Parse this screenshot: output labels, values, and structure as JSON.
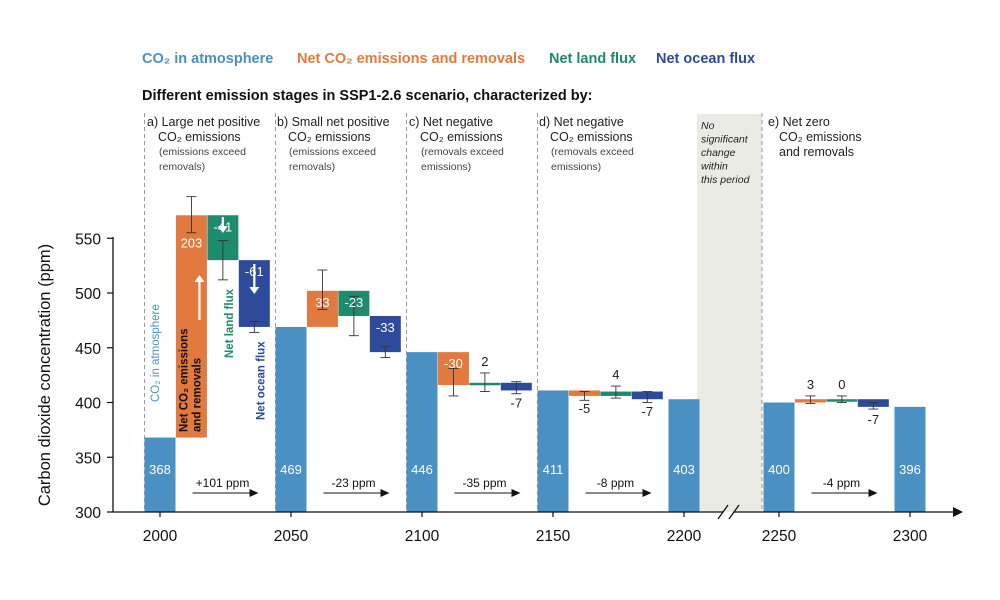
{
  "chart_data": {
    "type": "bar",
    "title": "Different emission stages in SSP1-2.6 scenario, characterized by:",
    "ylabel": "Carbon dioxide concentration (ppm)",
    "xlabel": "",
    "ylim": [
      300,
      590
    ],
    "y_ticks": [
      300,
      350,
      400,
      450,
      500,
      550
    ],
    "x_ticks": [
      "2000",
      "2050",
      "2100",
      "2150",
      "2200",
      "2250",
      "2300"
    ],
    "legend_position": "top-left",
    "legend": [
      {
        "label": "CO₂ in atmosphere",
        "color": "#4a90c2"
      },
      {
        "label": "Net CO₂ emissions and removals",
        "color": "#e27a3f"
      },
      {
        "label": "Net land flux",
        "color": "#1e8a6e"
      },
      {
        "label": "Net ocean flux",
        "color": "#2e4a9a"
      }
    ],
    "colors": {
      "atmosphere": "#4a90c2",
      "emissions": "#e27a3f",
      "land": "#1e8a6e",
      "ocean": "#2e4a9a",
      "gap": "#ebebe6"
    },
    "stages": [
      {
        "lines": [
          "a) Large net positive",
          "CO₂ emissions"
        ],
        "sub": [
          "(emissions exceed",
          "removals)"
        ],
        "x": 2000
      },
      {
        "lines": [
          "b) Small net positive",
          "CO₂ emissions"
        ],
        "sub": [
          "(emissions exceed",
          "removals)"
        ],
        "x": 2050
      },
      {
        "lines": [
          "c) Net negative",
          "CO₂ emissions"
        ],
        "sub": [
          "(removals exceed",
          "emissions)"
        ],
        "x": 2100
      },
      {
        "lines": [
          "d) Net negative",
          "CO₂ emissions"
        ],
        "sub": [
          "(removals exceed",
          "emissions)"
        ],
        "x": 2150
      },
      {
        "lines": [
          "e) Net zero",
          "CO₂ emissions",
          "and removals"
        ],
        "sub": [],
        "x": 2250
      }
    ],
    "gap_note": [
      "No",
      "significant",
      "change",
      "within",
      "this period"
    ],
    "bars": [
      {
        "kind": "atmosphere",
        "x": 2000,
        "bottom": 300,
        "top": 368,
        "label": "368"
      },
      {
        "kind": "emissions",
        "x": 2012,
        "bottom": 368,
        "top": 571,
        "label": "203",
        "err": [
          555,
          588
        ]
      },
      {
        "kind": "land",
        "x": 2024,
        "bottom": 530,
        "top": 571,
        "label": "-41",
        "err": [
          512,
          548
        ]
      },
      {
        "kind": "ocean",
        "x": 2036,
        "bottom": 469,
        "top": 530,
        "label": "-61",
        "err": [
          464,
          474
        ]
      },
      {
        "kind": "atmosphere",
        "x": 2050,
        "bottom": 300,
        "top": 469,
        "label": "469"
      },
      {
        "kind": "emissions",
        "x": 2062,
        "bottom": 469,
        "top": 502,
        "label": "33",
        "err": [
          485,
          521
        ]
      },
      {
        "kind": "land",
        "x": 2074,
        "bottom": 479,
        "top": 502,
        "label": "-23",
        "err": [
          461,
          497
        ]
      },
      {
        "kind": "ocean",
        "x": 2086,
        "bottom": 446,
        "top": 479,
        "label": "-33",
        "err": [
          441,
          451
        ]
      },
      {
        "kind": "atmosphere",
        "x": 2100,
        "bottom": 300,
        "top": 446,
        "label": "446"
      },
      {
        "kind": "emissions",
        "x": 2112,
        "bottom": 416,
        "top": 446,
        "label": "-30",
        "err": [
          406,
          431
        ]
      },
      {
        "kind": "land",
        "x": 2124,
        "bottom": 416,
        "top": 418,
        "label": "2",
        "err": [
          410,
          427
        ]
      },
      {
        "kind": "ocean",
        "x": 2136,
        "bottom": 411,
        "top": 418,
        "label": "-7",
        "err": [
          408,
          419
        ]
      },
      {
        "kind": "atmosphere",
        "x": 2150,
        "bottom": 300,
        "top": 411,
        "label": "411"
      },
      {
        "kind": "emissions",
        "x": 2162,
        "bottom": 406,
        "top": 411,
        "label": "-5",
        "err": [
          402,
          410
        ]
      },
      {
        "kind": "land",
        "x": 2174,
        "bottom": 406,
        "top": 410,
        "label": "4",
        "err": [
          404,
          415
        ]
      },
      {
        "kind": "ocean",
        "x": 2186,
        "bottom": 403,
        "top": 410,
        "label": "-7",
        "err": [
          400,
          410
        ]
      },
      {
        "kind": "atmosphere",
        "x": 2200,
        "bottom": 300,
        "top": 403,
        "label": "403"
      },
      {
        "kind": "atmosphere",
        "x": 2250,
        "bottom": 300,
        "top": 400,
        "label": "400"
      },
      {
        "kind": "emissions",
        "x": 2262,
        "bottom": 400,
        "top": 403,
        "label": "3",
        "err": [
          399,
          406
        ]
      },
      {
        "kind": "land",
        "x": 2274,
        "bottom": 403,
        "top": 403,
        "label": "0",
        "err": [
          400,
          406
        ]
      },
      {
        "kind": "ocean",
        "x": 2286,
        "bottom": 396,
        "top": 403,
        "label": "-7",
        "err": [
          394,
          400
        ]
      },
      {
        "kind": "atmosphere",
        "x": 2300,
        "bottom": 300,
        "top": 396,
        "label": "396"
      }
    ],
    "changes": [
      {
        "x": 2025,
        "label": "+101 ppm"
      },
      {
        "x": 2075,
        "label": "-23 ppm"
      },
      {
        "x": 2125,
        "label": "-35 ppm"
      },
      {
        "x": 2175,
        "label": "-8 ppm"
      },
      {
        "x": 2275,
        "label": "-4 ppm"
      }
    ],
    "rotated_labels": [
      {
        "kind": "atmosphere",
        "lines": [
          "CO₂ in atmosphere"
        ]
      },
      {
        "kind": "emissions",
        "lines": [
          "Net CO₂ emissions",
          "and removals"
        ]
      },
      {
        "kind": "land",
        "lines": [
          "Net land flux"
        ]
      },
      {
        "kind": "ocean",
        "lines": [
          "Net ocean flux"
        ]
      }
    ]
  }
}
